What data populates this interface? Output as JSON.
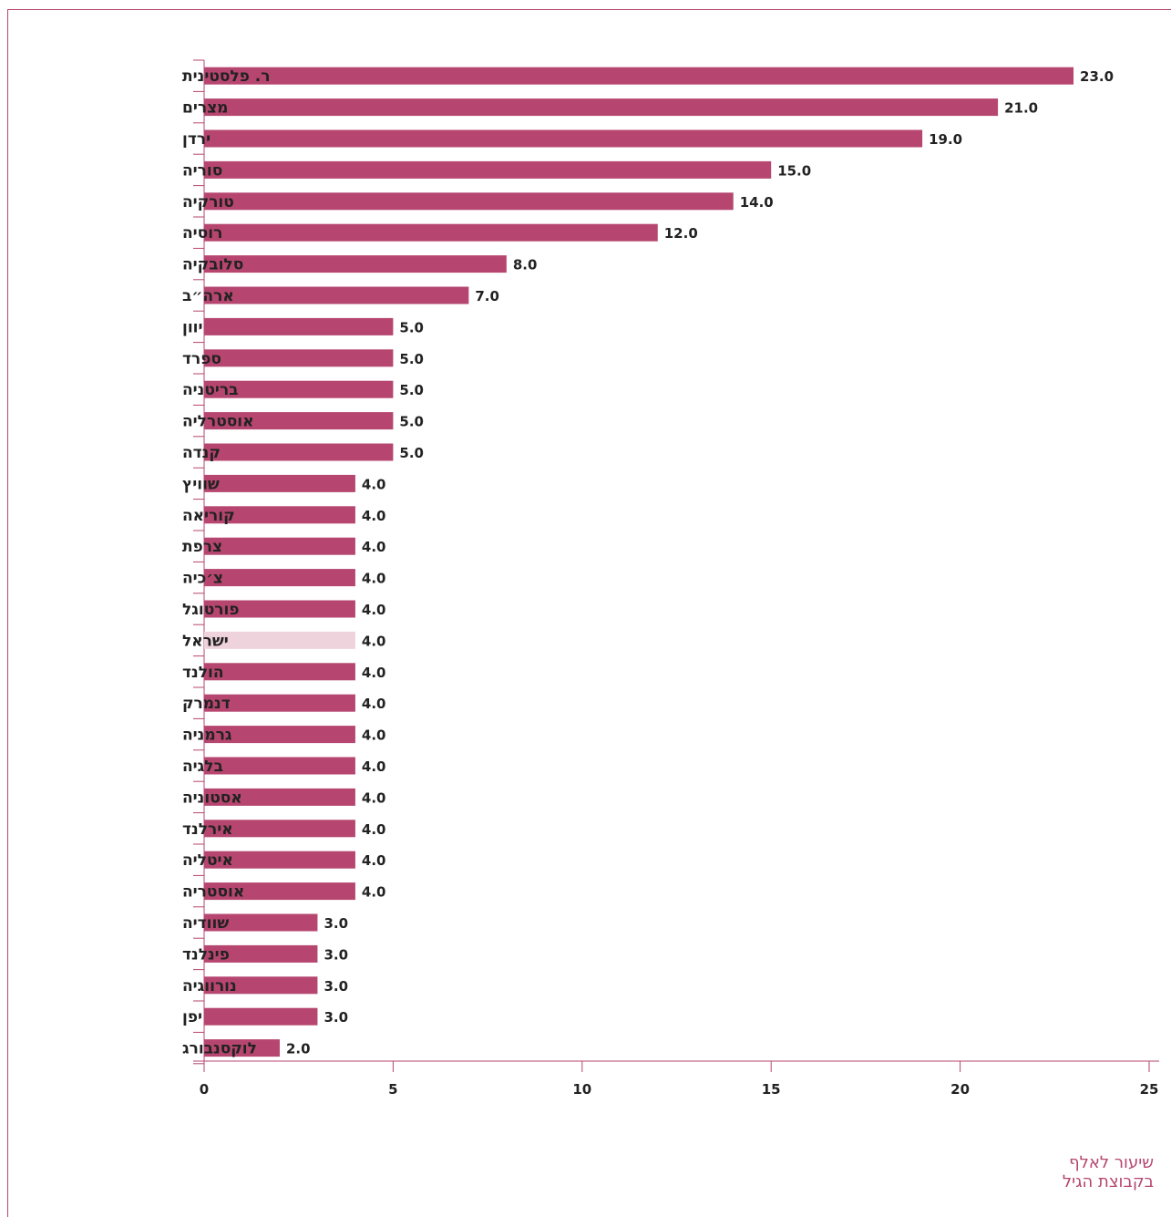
{
  "chart_data": {
    "type": "bar",
    "orientation": "horizontal",
    "categories": [
      "ר. פלסטינית",
      "מצרים",
      "ירדן",
      "סוריה",
      "טורקיה",
      "רוסיה",
      "סלובקיה",
      "ארה״ב",
      "יוון",
      "ספרד",
      "בריטניה",
      "אוסטרליה",
      "קנדה",
      "שוויץ",
      "קוריאה",
      "צרפת",
      "צ׳כיה",
      "פורטוגל",
      "ישראל",
      "הולנד",
      "דנמרק",
      "גרמניה",
      "בלגיה",
      "אסטוניה",
      "אירלנד",
      "איטליה",
      "אוסטריה",
      "שוודיה",
      "פינלנד",
      "נורווגיה",
      "יפן",
      "לוקסנבורג"
    ],
    "values": [
      23.0,
      21.0,
      19.0,
      15.0,
      14.0,
      12.0,
      8.0,
      7.0,
      5.0,
      5.0,
      5.0,
      5.0,
      5.0,
      4.0,
      4.0,
      4.0,
      4.0,
      4.0,
      4.0,
      4.0,
      4.0,
      4.0,
      4.0,
      4.0,
      4.0,
      4.0,
      4.0,
      3.0,
      3.0,
      3.0,
      3.0,
      2.0
    ],
    "value_labels": [
      "23.0",
      "21.0",
      "19.0",
      "15.0",
      "14.0",
      "12.0",
      "8.0",
      "7.0",
      "5.0",
      "5.0",
      "5.0",
      "5.0",
      "5.0",
      "4.0",
      "4.0",
      "4.0",
      "4.0",
      "4.0",
      "4.0",
      "4.0",
      "4.0",
      "4.0",
      "4.0",
      "4.0",
      "4.0",
      "4.0",
      "4.0",
      "3.0",
      "3.0",
      "3.0",
      "3.0",
      "2.0"
    ],
    "highlight_category": "ישראל",
    "xticks": [
      0,
      5,
      10,
      15,
      20,
      25
    ],
    "xlim": [
      0,
      25
    ],
    "xlabel_lines": [
      "שיעור לאלף",
      "בקבוצת הגיל"
    ],
    "grid": false,
    "colors": {
      "bar": "#b6466f",
      "highlight": "#eed3dc",
      "axis": "#b6466f",
      "text": "#222222"
    }
  }
}
